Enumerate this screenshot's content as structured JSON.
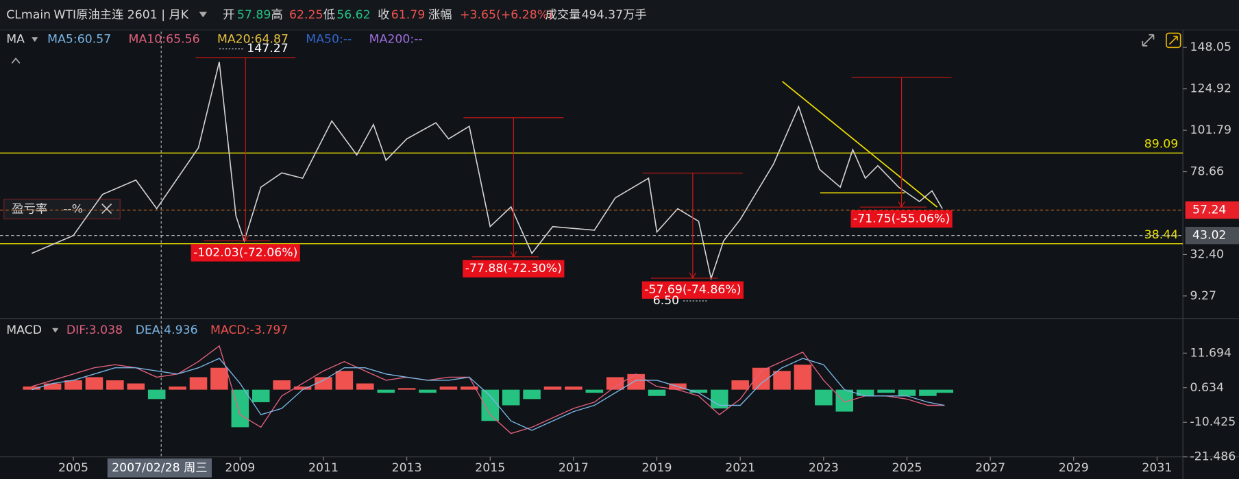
{
  "header": {
    "symbol": "CLmain",
    "name": "WTI原油主连 2601 | 月K",
    "open_label": "开",
    "open": "57.89",
    "high_label": "高",
    "high": "62.25",
    "low_label": "低",
    "low": "56.62",
    "close_label": "收",
    "close": "61.79",
    "change_label": "涨幅",
    "change": "+3.65(+6.28%)",
    "volume_label": "成交量",
    "volume": "494.37万手"
  },
  "ma_legend": {
    "title": "MA",
    "items": [
      {
        "text": "MA5:60.57",
        "color": "#7ab6e6"
      },
      {
        "text": "MA10:65.56",
        "color": "#e0607e"
      },
      {
        "text": "MA20:64.87",
        "color": "#e8c040"
      },
      {
        "text": "MA50:--",
        "color": "#3366cc"
      },
      {
        "text": "MA200:--",
        "color": "#a070e0"
      }
    ]
  },
  "macd_legend": {
    "title": "MACD",
    "items": [
      {
        "text": "DIF:3.038",
        "color": "#e0607e"
      },
      {
        "text": "DEA:4.936",
        "color": "#7ab6e6"
      },
      {
        "text": "MACD:-3.797",
        "color": "#f0534f"
      }
    ]
  },
  "pnl_box": {
    "label": "盈亏率",
    "value": "--%"
  },
  "crosshair_date": "2007/02/28 周三",
  "chart_data": [
    {
      "type": "line",
      "x": [
        2004.0,
        2005.0,
        2005.7,
        2006.5,
        2007.0,
        2007.5,
        2008.0,
        2008.5,
        2008.9,
        2009.1,
        2009.5,
        2010.0,
        2010.5,
        2011.2,
        2011.8,
        2012.2,
        2012.5,
        2013.0,
        2013.7,
        2014.0,
        2014.5,
        2015.0,
        2015.5,
        2016.0,
        2016.5,
        2017.5,
        2018.0,
        2018.8,
        2019.0,
        2019.5,
        2020.0,
        2020.3,
        2020.6,
        2021.0,
        2021.8,
        2022.4,
        2022.9,
        2023.4,
        2023.7,
        2024.0,
        2024.3,
        2024.8,
        2025.3,
        2025.6,
        2025.85
      ],
      "values": [
        33,
        43,
        66,
        74,
        58,
        75,
        92,
        140,
        54,
        40,
        70,
        78,
        75,
        107,
        88,
        105,
        85,
        97,
        106,
        97,
        104,
        48,
        59,
        33,
        48,
        46,
        64,
        75,
        45,
        58,
        51,
        19,
        40,
        52,
        83,
        115,
        80,
        70,
        91,
        75,
        82,
        70,
        62,
        68,
        58
      ],
      "color": "#d4d4d4",
      "xlim": [
        2003.24,
        2031.62
      ],
      "ylim": [
        -3.35,
        156.88
      ],
      "yticks": [
        148.05,
        124.92,
        101.79,
        78.66,
        {
          "value": 32.4,
          "label": "32.40"
        },
        9.27
      ],
      "xticks": [
        2005,
        2009,
        2011,
        2013,
        2015,
        2017,
        2019,
        2021,
        2023,
        2025,
        2027,
        2029,
        2031
      ],
      "hlines": [
        {
          "value": 89.09,
          "color": "#e8e000"
        },
        {
          "value": 38.44,
          "color": "#e8e000"
        }
      ],
      "price_tags": [
        {
          "value": 57.24,
          "color": "#e8202a",
          "line": "#e07020"
        },
        {
          "value": 43.02,
          "color": "#4a4e55",
          "line": "#c8c8c8"
        }
      ],
      "extremes": [
        {
          "x": 2008.5,
          "value": 147.27,
          "side": "right"
        },
        {
          "x": 2020.2,
          "value": 6.5,
          "label": "6.50",
          "side": "left"
        }
      ],
      "drawdowns": [
        {
          "x": 2009.13,
          "high": 142.3,
          "low": 40,
          "label": "-102.03(-72.06%)"
        },
        {
          "x": 2015.56,
          "high": 108.8,
          "low": 31.1,
          "label": "-77.88(-72.30%)"
        },
        {
          "x": 2019.86,
          "high": 77.9,
          "low": 19.2,
          "label": "-57.69(-74.86%)"
        },
        {
          "x": 2024.87,
          "high": 131.3,
          "low": 58.9,
          "label": "-71.75(-55.06%)"
        }
      ]
    },
    {
      "type": "bar",
      "x": [
        2004,
        2004.5,
        2005,
        2005.5,
        2006,
        2006.5,
        2007,
        2007.5,
        2008,
        2008.5,
        2009,
        2009.5,
        2010,
        2010.5,
        2011,
        2011.5,
        2012,
        2012.5,
        2013,
        2013.5,
        2014,
        2014.5,
        2015,
        2015.5,
        2016,
        2016.5,
        2017,
        2017.5,
        2018,
        2018.5,
        2019,
        2019.5,
        2020,
        2020.5,
        2021,
        2021.5,
        2022,
        2022.5,
        2023,
        2023.5,
        2024,
        2024.5,
        2025,
        2025.5,
        2025.9
      ],
      "values": [
        1,
        2,
        3,
        4,
        3,
        2,
        -3,
        1,
        4,
        7,
        -12,
        -4,
        3,
        1,
        4,
        6,
        2,
        -1,
        0.5,
        -1,
        1,
        1,
        -10,
        -5,
        -3,
        1,
        1,
        -1,
        4,
        5,
        -2,
        2,
        -1,
        -6,
        3,
        7,
        6,
        8,
        -5,
        -7,
        -2,
        -1,
        -2,
        -2,
        -1
      ],
      "up_color": "#f0534f",
      "down_color": "#26c281",
      "lines": [
        {
          "color": "#e0607e",
          "values": [
            1,
            3,
            5,
            7,
            8,
            7,
            4,
            5,
            9,
            14,
            -8,
            -12,
            -2,
            2,
            6,
            9,
            6,
            3,
            4,
            3,
            4,
            4,
            -8,
            -14,
            -12,
            -9,
            -6,
            -4,
            1,
            5,
            1,
            0,
            -2,
            -8,
            -3,
            6,
            9,
            12,
            3,
            -4,
            -2,
            -2,
            -3,
            -5,
            -5
          ]
        },
        {
          "color": "#7ab6e6",
          "values": [
            0,
            2,
            3,
            5,
            7,
            7,
            6,
            5,
            7,
            10,
            2,
            -8,
            -6,
            0,
            3,
            7,
            7,
            5,
            4,
            3,
            3,
            4,
            -2,
            -10,
            -13,
            -10,
            -7,
            -5,
            -1,
            3,
            3,
            1,
            -1,
            -5,
            -5,
            2,
            7,
            10,
            8,
            0,
            -2,
            -2,
            -2,
            -4,
            -5
          ]
        }
      ],
      "xlim": [
        2003.24,
        2031.62
      ],
      "ylim": [
        -21.486,
        22.75
      ],
      "yticks": [
        11.694,
        0.634,
        -10.425,
        -21.486
      ]
    }
  ]
}
